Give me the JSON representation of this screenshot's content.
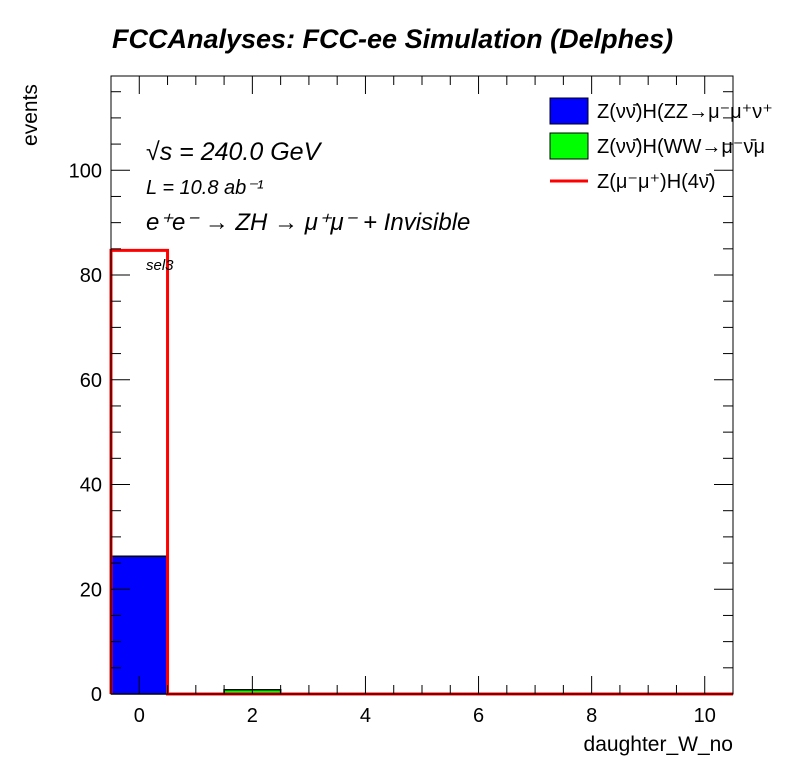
{
  "chart_data": {
    "type": "bar",
    "title": "FCCAnalyses: FCC-ee Simulation (Delphes)",
    "xlabel": "daughter_W_no",
    "ylabel": "events",
    "xlim": [
      -0.5,
      10.5
    ],
    "ylim": [
      0,
      118
    ],
    "x_ticks": [
      0,
      2,
      4,
      6,
      8,
      10
    ],
    "y_ticks": [
      0,
      20,
      40,
      60,
      80,
      100
    ],
    "bin_width": 1,
    "stacked": true,
    "series": [
      {
        "name": "Z(νν̄)H(ZZ→μ⁻μ⁺ν⁺",
        "style": "filled",
        "color": "#0000ff",
        "x": [
          0,
          1,
          2,
          3,
          4,
          5,
          6,
          7,
          8,
          9,
          10
        ],
        "values": [
          26.3,
          0,
          0,
          0,
          0,
          0,
          0,
          0,
          0,
          0,
          0
        ]
      },
      {
        "name": "Z(νν̄)H(WW→μ⁻ν̄μ",
        "style": "filled",
        "color": "#00ff00",
        "x": [
          0,
          1,
          2,
          3,
          4,
          5,
          6,
          7,
          8,
          9,
          10
        ],
        "values": [
          0,
          0,
          0.8,
          0,
          0,
          0,
          0,
          0,
          0,
          0,
          0
        ]
      },
      {
        "name": "Z(μ⁻μ⁺)H(4ν̄)",
        "style": "line",
        "color": "#ff0000",
        "x": [
          0,
          1,
          2,
          3,
          4,
          5,
          6,
          7,
          8,
          9,
          10
        ],
        "values": [
          84.7,
          0,
          0,
          0,
          0,
          0,
          0,
          0,
          0,
          0,
          0
        ]
      }
    ],
    "annotations": {
      "sqrt_s": "√s = 240.0 GeV",
      "lumi": "L = 10.8 ab⁻¹",
      "process": "e⁺e⁻ → ZH → μ⁺μ⁻ + Invisible",
      "selection": "sel3"
    },
    "legend_position": "top-right",
    "grid": false
  }
}
